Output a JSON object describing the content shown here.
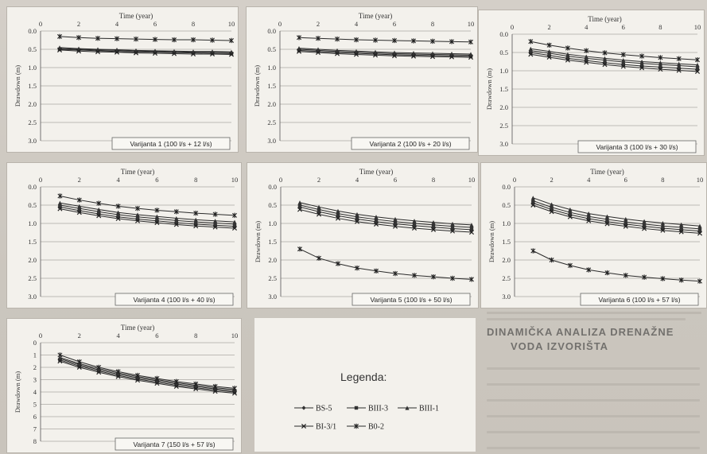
{
  "figure": {
    "legend_title": "Legenda:",
    "series_names": [
      "BS-5",
      "BIII-3",
      "BIII-1",
      "BI-3/1",
      "B0-2"
    ],
    "background_heading_1": "DINAMIČKA ANALIZA DRENAŽNE",
    "background_heading_2": "VODA IZVORIŠTA"
  },
  "chart_data": [
    {
      "type": "line",
      "variant_label": "Varijanta 1 (100 l/s + 12 l/s)",
      "xlabel": "Time (year)",
      "ylabel": "Drawdown (m)",
      "xlim": [
        0,
        10
      ],
      "ylim": [
        0,
        3
      ],
      "y_inverted": true,
      "xticks": [
        "0",
        "2",
        "4",
        "6",
        "8",
        "10"
      ],
      "yticks": [
        "0.0",
        "0.5",
        "1.0",
        "1.5",
        "2.0",
        "2.5",
        "3.0"
      ],
      "x": [
        1,
        2,
        3,
        4,
        5,
        6,
        7,
        8,
        9,
        10
      ],
      "series": [
        {
          "name": "BS-5",
          "values": [
            0.48,
            0.5,
            0.52,
            0.53,
            0.55,
            0.56,
            0.57,
            0.58,
            0.58,
            0.59
          ]
        },
        {
          "name": "BIII-3",
          "values": [
            0.5,
            0.52,
            0.54,
            0.56,
            0.57,
            0.58,
            0.59,
            0.6,
            0.61,
            0.62
          ]
        },
        {
          "name": "BIII-1",
          "values": [
            0.45,
            0.48,
            0.5,
            0.51,
            0.53,
            0.54,
            0.55,
            0.56,
            0.56,
            0.57
          ]
        },
        {
          "name": "BI-3/1",
          "values": [
            0.52,
            0.55,
            0.57,
            0.58,
            0.6,
            0.61,
            0.62,
            0.63,
            0.63,
            0.64
          ]
        },
        {
          "name": "B0-2",
          "values": [
            0.15,
            0.18,
            0.2,
            0.21,
            0.22,
            0.23,
            0.24,
            0.24,
            0.25,
            0.26
          ]
        }
      ]
    },
    {
      "type": "line",
      "variant_label": "Varijanta 2 (100 l/s + 20 l/s)",
      "xlabel": "Time (year)",
      "ylabel": "Drawdown (m)",
      "xlim": [
        0,
        10
      ],
      "ylim": [
        0,
        3
      ],
      "y_inverted": true,
      "xticks": [
        "0",
        "2",
        "4",
        "6",
        "8",
        "10"
      ],
      "yticks": [
        "0.0",
        "0.5",
        "1.0",
        "1.5",
        "2.0",
        "2.5",
        "3.0"
      ],
      "x": [
        1,
        2,
        3,
        4,
        5,
        6,
        7,
        8,
        9,
        10
      ],
      "series": [
        {
          "name": "BS-5",
          "values": [
            0.5,
            0.53,
            0.56,
            0.58,
            0.6,
            0.62,
            0.63,
            0.64,
            0.65,
            0.66
          ]
        },
        {
          "name": "BIII-3",
          "values": [
            0.53,
            0.56,
            0.59,
            0.61,
            0.63,
            0.65,
            0.66,
            0.67,
            0.68,
            0.69
          ]
        },
        {
          "name": "BIII-1",
          "values": [
            0.47,
            0.5,
            0.53,
            0.55,
            0.57,
            0.59,
            0.6,
            0.61,
            0.62,
            0.63
          ]
        },
        {
          "name": "BI-3/1",
          "values": [
            0.56,
            0.59,
            0.62,
            0.64,
            0.66,
            0.68,
            0.69,
            0.7,
            0.71,
            0.72
          ]
        },
        {
          "name": "B0-2",
          "values": [
            0.18,
            0.2,
            0.22,
            0.24,
            0.25,
            0.26,
            0.27,
            0.28,
            0.29,
            0.3
          ]
        }
      ]
    },
    {
      "type": "line",
      "variant_label": "Varijanta 3 (100 l/s + 30 l/s)",
      "xlabel": "Time (year)",
      "ylabel": "Drawdown (m)",
      "xlim": [
        0,
        10
      ],
      "ylim": [
        0,
        3
      ],
      "y_inverted": true,
      "xticks": [
        "0",
        "2",
        "4",
        "6",
        "8",
        "10"
      ],
      "yticks": [
        "0.0",
        "0.5",
        "1.0",
        "1.5",
        "2.0",
        "2.5",
        "3.0"
      ],
      "x": [
        1,
        2,
        3,
        4,
        5,
        6,
        7,
        8,
        9,
        10
      ],
      "series": [
        {
          "name": "BS-5",
          "values": [
            0.45,
            0.52,
            0.6,
            0.66,
            0.71,
            0.76,
            0.8,
            0.83,
            0.86,
            0.89
          ]
        },
        {
          "name": "BIII-3",
          "values": [
            0.5,
            0.58,
            0.66,
            0.72,
            0.78,
            0.83,
            0.87,
            0.9,
            0.93,
            0.96
          ]
        },
        {
          "name": "BIII-1",
          "values": [
            0.4,
            0.47,
            0.55,
            0.61,
            0.66,
            0.71,
            0.75,
            0.78,
            0.81,
            0.84
          ]
        },
        {
          "name": "BI-3/1",
          "values": [
            0.55,
            0.63,
            0.71,
            0.77,
            0.83,
            0.88,
            0.92,
            0.96,
            0.99,
            1.02
          ]
        },
        {
          "name": "B0-2",
          "values": [
            0.2,
            0.3,
            0.38,
            0.45,
            0.51,
            0.56,
            0.6,
            0.64,
            0.67,
            0.7
          ]
        }
      ]
    },
    {
      "type": "line",
      "variant_label": "Varijanta 4 (100 l/s + 40 l/s)",
      "xlabel": "Time (year)",
      "ylabel": "",
      "xlim": [
        0,
        10
      ],
      "ylim": [
        0,
        3
      ],
      "y_inverted": true,
      "xticks": [
        "0",
        "2",
        "4",
        "6",
        "8",
        "10"
      ],
      "yticks": [
        "0.0",
        "0.5",
        "1.0",
        "1.5",
        "2.0",
        "2.5",
        "3.0"
      ],
      "x": [
        1,
        2,
        3,
        4,
        5,
        6,
        7,
        8,
        9,
        10
      ],
      "series": [
        {
          "name": "BS-5",
          "values": [
            0.5,
            0.59,
            0.68,
            0.76,
            0.82,
            0.87,
            0.92,
            0.96,
            0.99,
            1.02
          ]
        },
        {
          "name": "BIII-3",
          "values": [
            0.55,
            0.65,
            0.74,
            0.82,
            0.88,
            0.93,
            0.98,
            1.02,
            1.05,
            1.08
          ]
        },
        {
          "name": "BIII-1",
          "values": [
            0.44,
            0.53,
            0.62,
            0.7,
            0.76,
            0.81,
            0.86,
            0.9,
            0.93,
            0.96
          ]
        },
        {
          "name": "BI-3/1",
          "values": [
            0.6,
            0.7,
            0.79,
            0.87,
            0.93,
            0.98,
            1.03,
            1.07,
            1.1,
            1.13
          ]
        },
        {
          "name": "B0-2",
          "values": [
            0.25,
            0.36,
            0.45,
            0.53,
            0.59,
            0.64,
            0.68,
            0.72,
            0.75,
            0.78
          ]
        }
      ]
    },
    {
      "type": "line",
      "variant_label": "Varijanta 5 (100 l/s + 50 l/s)",
      "xlabel": "Time (year)",
      "ylabel": "Drawdown (m)",
      "xlim": [
        0,
        10
      ],
      "ylim": [
        0,
        3
      ],
      "y_inverted": true,
      "xticks": [
        "0",
        "2",
        "4",
        "6",
        "8",
        "10"
      ],
      "yticks": [
        "0.0",
        "0.5",
        "1.0",
        "1.5",
        "2.0",
        "2.5",
        "3.0"
      ],
      "x": [
        1,
        2,
        3,
        4,
        5,
        6,
        7,
        8,
        9,
        10
      ],
      "series": [
        {
          "name": "BS-5",
          "values": [
            0.5,
            0.62,
            0.73,
            0.82,
            0.89,
            0.95,
            1.0,
            1.04,
            1.08,
            1.11
          ]
        },
        {
          "name": "BIII-3",
          "values": [
            0.55,
            0.68,
            0.79,
            0.88,
            0.95,
            1.01,
            1.06,
            1.1,
            1.14,
            1.17
          ]
        },
        {
          "name": "BIII-1",
          "values": [
            0.43,
            0.55,
            0.66,
            0.75,
            0.82,
            0.88,
            0.93,
            0.97,
            1.01,
            1.04
          ]
        },
        {
          "name": "BI-3/1",
          "values": [
            0.62,
            0.75,
            0.86,
            0.95,
            1.02,
            1.08,
            1.13,
            1.17,
            1.21,
            1.24
          ]
        },
        {
          "name": "B0-2",
          "values": [
            1.7,
            1.95,
            2.1,
            2.22,
            2.3,
            2.37,
            2.42,
            2.46,
            2.5,
            2.53
          ]
        }
      ]
    },
    {
      "type": "line",
      "variant_label": "Varijanta 6 (100 l/s + 57 l/s)",
      "xlabel": "Time (year)",
      "ylabel": "Drawdown (m)",
      "xlim": [
        0,
        10
      ],
      "ylim": [
        0,
        3
      ],
      "y_inverted": true,
      "xticks": [
        "0",
        "2",
        "4",
        "6",
        "8",
        "10"
      ],
      "yticks": [
        "0.0",
        "0.5",
        "1.0",
        "1.5",
        "2.0",
        "2.5",
        "3.0"
      ],
      "x": [
        1,
        2,
        3,
        4,
        5,
        6,
        7,
        8,
        9,
        10
      ],
      "series": [
        {
          "name": "BS-5",
          "values": [
            0.38,
            0.56,
            0.7,
            0.81,
            0.89,
            0.96,
            1.02,
            1.07,
            1.11,
            1.15
          ]
        },
        {
          "name": "BIII-3",
          "values": [
            0.44,
            0.62,
            0.76,
            0.87,
            0.95,
            1.02,
            1.08,
            1.13,
            1.17,
            1.21
          ]
        },
        {
          "name": "BIII-1",
          "values": [
            0.3,
            0.48,
            0.62,
            0.73,
            0.81,
            0.88,
            0.94,
            0.99,
            1.03,
            1.07
          ]
        },
        {
          "name": "BI-3/1",
          "values": [
            0.5,
            0.68,
            0.82,
            0.93,
            1.01,
            1.08,
            1.14,
            1.19,
            1.23,
            1.27
          ]
        },
        {
          "name": "B0-2",
          "values": [
            1.75,
            2.0,
            2.15,
            2.27,
            2.35,
            2.42,
            2.47,
            2.51,
            2.55,
            2.58
          ]
        }
      ]
    },
    {
      "type": "line",
      "variant_label": "Varijanta 7 (150 l/s + 57 l/s)",
      "xlabel": "Time (year)",
      "ylabel": "Drawdown (m)",
      "xlim": [
        0,
        10
      ],
      "ylim": [
        0,
        8
      ],
      "y_inverted": true,
      "xticks": [
        "0",
        "2",
        "4",
        "6",
        "8",
        "10"
      ],
      "yticks": [
        "0",
        "1",
        "2",
        "3",
        "4",
        "5",
        "6",
        "7",
        "8"
      ],
      "x": [
        1,
        2,
        3,
        4,
        5,
        6,
        7,
        8,
        9,
        10
      ],
      "series": [
        {
          "name": "BS-5",
          "values": [
            1.3,
            1.8,
            2.2,
            2.55,
            2.85,
            3.1,
            3.35,
            3.55,
            3.75,
            3.9
          ]
        },
        {
          "name": "BIII-3",
          "values": [
            1.4,
            1.9,
            2.3,
            2.65,
            2.95,
            3.2,
            3.45,
            3.65,
            3.85,
            4.0
          ]
        },
        {
          "name": "BIII-1",
          "values": [
            1.2,
            1.7,
            2.1,
            2.45,
            2.75,
            3.0,
            3.25,
            3.45,
            3.65,
            3.8
          ]
        },
        {
          "name": "BI-3/1",
          "values": [
            1.5,
            2.0,
            2.4,
            2.75,
            3.05,
            3.3,
            3.55,
            3.75,
            3.95,
            4.1
          ]
        },
        {
          "name": "B0-2",
          "values": [
            1.0,
            1.55,
            2.0,
            2.35,
            2.65,
            2.9,
            3.15,
            3.35,
            3.55,
            3.7
          ]
        }
      ]
    }
  ]
}
